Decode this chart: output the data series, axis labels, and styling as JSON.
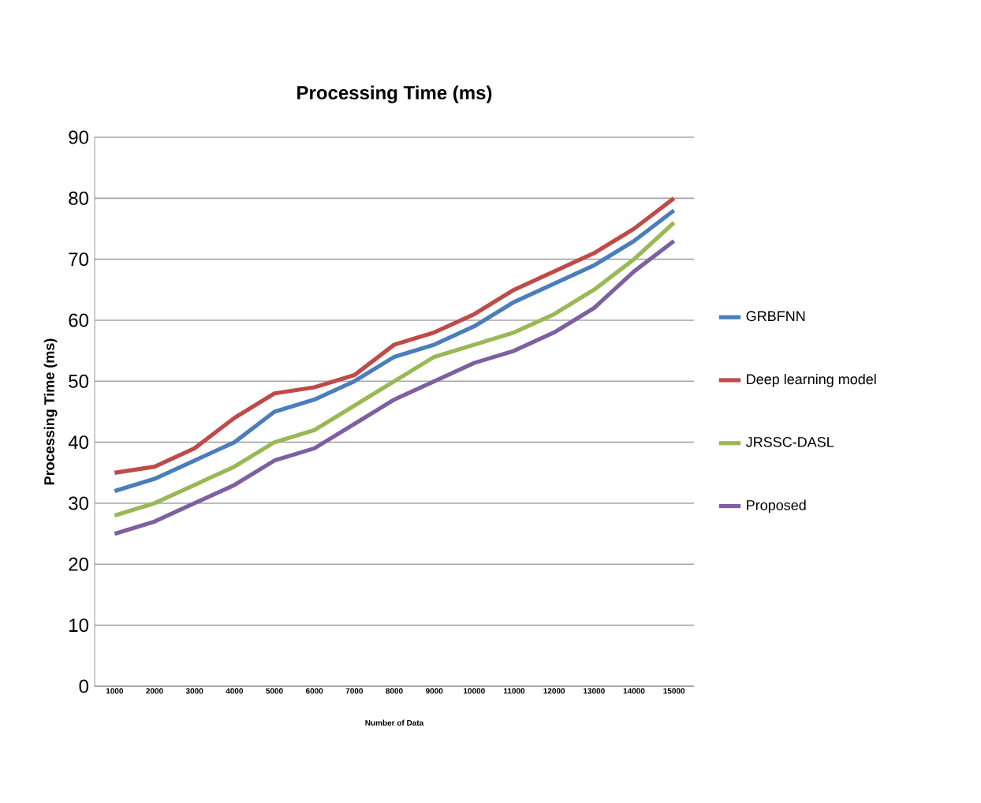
{
  "chart_data": {
    "type": "line",
    "title": "Processing Time (ms)",
    "xlabel": "Number of Data",
    "ylabel": "Processing Time (ms)",
    "categories": [
      "1000",
      "2000",
      "3000",
      "4000",
      "5000",
      "6000",
      "7000",
      "8000",
      "9000",
      "10000",
      "11000",
      "12000",
      "13000",
      "14000",
      "15000"
    ],
    "ylim": [
      0,
      90
    ],
    "yticks": [
      0,
      10,
      20,
      30,
      40,
      50,
      60,
      70,
      80,
      90
    ],
    "grid": "y",
    "legend": "right",
    "marker": "none",
    "line_style": "solid",
    "series": [
      {
        "name": "GRBFNN",
        "color": "#4a7ebb",
        "values": [
          32,
          34,
          37,
          40,
          45,
          47,
          50,
          54,
          56,
          59,
          63,
          66,
          69,
          73,
          78
        ]
      },
      {
        "name": "Deep learning model",
        "color": "#be4b48",
        "values": [
          35,
          36,
          39,
          44,
          48,
          49,
          51,
          56,
          58,
          61,
          65,
          68,
          71,
          75,
          80
        ]
      },
      {
        "name": "JRSSC-DASL",
        "color": "#98b954",
        "values": [
          28,
          30,
          33,
          36,
          40,
          42,
          46,
          50,
          54,
          56,
          58,
          61,
          65,
          70,
          76
        ]
      },
      {
        "name": "Proposed",
        "color": "#7d60a0",
        "values": [
          25,
          27,
          30,
          33,
          37,
          39,
          43,
          47,
          50,
          53,
          55,
          58,
          62,
          68,
          73
        ]
      }
    ]
  }
}
